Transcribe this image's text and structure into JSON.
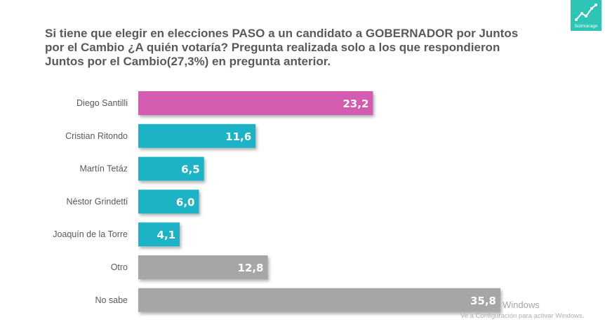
{
  "logo": {
    "text": "Solmoirago",
    "icon": "trend-chart-icon",
    "color": "#2ec4b6"
  },
  "watermark": {
    "line1": "Windows",
    "line2": "Ve a Configuración para activar Windows."
  },
  "chart_data": {
    "type": "bar",
    "orientation": "horizontal",
    "title": "Si tiene que elegir en elecciones PASO a un candidato a GOBERNADOR por Juntos por el Cambio ¿A quién votaría? Pregunta realizada solo a los que respondieron Juntos por el Cambio(27,3%) en pregunta anterior.",
    "categories": [
      "Diego Santilli",
      "Cristian Ritondo",
      "Martín Tetáz",
      "Néstor Grindetti",
      "Joaquín de la Torre",
      "Otro",
      "No sabe"
    ],
    "values": [
      23.2,
      11.6,
      6.5,
      6.0,
      4.1,
      12.8,
      35.8
    ],
    "value_labels": [
      "23,2",
      "11,6",
      "6,5",
      "6,0",
      "4,1",
      "12,8",
      "35,8"
    ],
    "colors": [
      "#d45cb0",
      "#1ab3c6",
      "#1ab3c6",
      "#1ab3c6",
      "#1ab3c6",
      "#a6a6a6",
      "#a6a6a6"
    ],
    "xlim": [
      0,
      35.8
    ],
    "grid": false,
    "legend": "none"
  }
}
